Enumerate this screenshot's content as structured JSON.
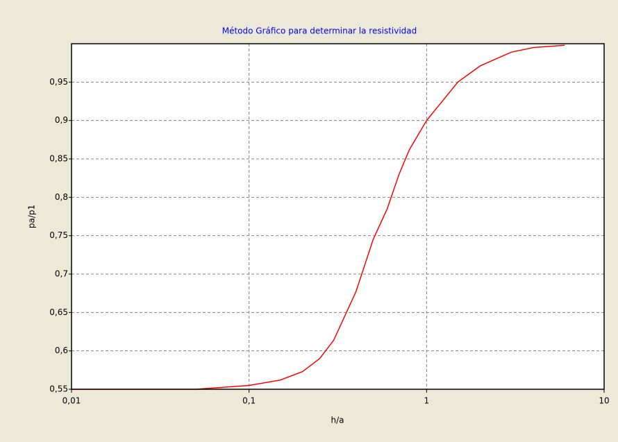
{
  "chart_data": {
    "type": "line",
    "title": "Método Gráfico para determinar la resistividad",
    "xlabel": "h/a",
    "ylabel": "pa/p1",
    "xscale": "log",
    "grid": true,
    "xlim": [
      0.01,
      10
    ],
    "ylim": [
      0.55,
      1.0
    ],
    "xticks": [
      {
        "value": 0.01,
        "label": "0,01"
      },
      {
        "value": 0.1,
        "label": "0,1"
      },
      1,
      10
    ],
    "yticks": [
      {
        "value": 0.55,
        "label": "0,55"
      },
      {
        "value": 0.6,
        "label": "0,6"
      },
      {
        "value": 0.65,
        "label": "0,65"
      },
      {
        "value": 0.7,
        "label": "0,7"
      },
      {
        "value": 0.75,
        "label": "0,75"
      },
      {
        "value": 0.8,
        "label": "0,8"
      },
      {
        "value": 0.85,
        "label": "0,85"
      },
      {
        "value": 0.9,
        "label": "0,9"
      },
      {
        "value": 0.95,
        "label": "0,95"
      }
    ],
    "x": [
      0.01,
      0.05,
      0.1,
      0.15,
      0.2,
      0.25,
      0.3,
      0.4,
      0.5,
      0.6,
      0.7,
      0.8,
      1,
      1.5,
      2,
      3,
      4,
      6
    ],
    "series": [
      {
        "color": "#ff0000",
        "values": [
          0.55,
          0.55,
          0.555,
          0.562,
          0.573,
          0.59,
          0.614,
          0.677,
          0.745,
          0.785,
          0.83,
          0.862,
          0.9,
          0.95,
          0.971,
          0.989,
          0.995,
          0.998
        ]
      }
    ]
  }
}
